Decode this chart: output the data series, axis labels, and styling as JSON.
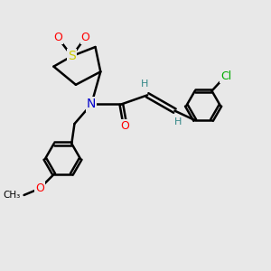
{
  "background_color": "#e8e8e8",
  "bond_color": "#000000",
  "bond_width": 1.8,
  "atom_colors": {
    "N": "#0000cc",
    "O": "#ff0000",
    "S": "#cccc00",
    "Cl": "#00aa00",
    "H": "#338888",
    "C": "#000000"
  },
  "figsize": [
    3.0,
    3.0
  ],
  "dpi": 100,
  "xlim": [
    0,
    10
  ],
  "ylim": [
    0,
    10
  ],
  "font_size_atom": 9,
  "font_size_small": 8
}
